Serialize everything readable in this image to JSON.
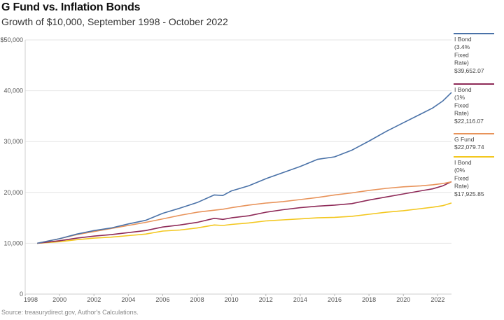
{
  "title": "G Fund vs. Inflation Bonds",
  "subtitle": "Growth of $10,000, September 1998 - October 2022",
  "source": "Source: treasurydirect.gov, Author's Calculations.",
  "chart_data": {
    "type": "line",
    "title": "G Fund vs. Inflation Bonds",
    "subtitle": "Growth of $10,000, September 1998 - October 2022",
    "xlabel": "",
    "ylabel": "",
    "xlim": [
      1998,
      2022.8
    ],
    "ylim": [
      0,
      50000
    ],
    "grid": true,
    "legend_position": "right",
    "y_ticks": [
      0,
      10000,
      20000,
      30000,
      40000,
      50000
    ],
    "y_tick_labels": [
      "0",
      "10,000",
      "20,000",
      "30,000",
      "40,000",
      "$50,000"
    ],
    "x_ticks": [
      1998,
      2000,
      2002,
      2004,
      2006,
      2008,
      2010,
      2012,
      2014,
      2016,
      2018,
      2020,
      2022
    ],
    "x_tick_labels": [
      "1998",
      "2000",
      "2002",
      "2004",
      "2006",
      "2008",
      "2010",
      "2012",
      "2014",
      "2016",
      "2018",
      "2020",
      "2022"
    ],
    "x": [
      1998.7,
      2000,
      2001,
      2002,
      2003,
      2004,
      2005,
      2006,
      2007,
      2008,
      2009,
      2009.5,
      2010,
      2011,
      2012,
      2013,
      2014,
      2015,
      2016,
      2017,
      2018,
      2019,
      2020,
      2021,
      2021.7,
      2022.3,
      2022.8
    ],
    "series": [
      {
        "name": "I Bond (3.4% Fixed Rate)",
        "legend_lines": [
          "I Bond",
          "(3.4%",
          "Fixed",
          "Rate)",
          "$39,652.07"
        ],
        "color": "#4a72a8",
        "values": [
          10000,
          10900,
          11800,
          12500,
          13000,
          13800,
          14500,
          15900,
          16900,
          18000,
          19500,
          19400,
          20300,
          21300,
          22700,
          23900,
          25100,
          26500,
          27000,
          28300,
          30100,
          32000,
          33700,
          35400,
          36600,
          38000,
          39652
        ]
      },
      {
        "name": "I Bond (1% Fixed Rate)",
        "legend_lines": [
          "I Bond",
          "(1%",
          "Fixed",
          "Rate)",
          "$22,116.07"
        ],
        "color": "#8e2a58",
        "values": [
          10000,
          10500,
          11000,
          11400,
          11700,
          12100,
          12500,
          13200,
          13600,
          14100,
          14900,
          14700,
          15000,
          15400,
          16100,
          16600,
          17000,
          17300,
          17500,
          17800,
          18500,
          19100,
          19700,
          20300,
          20700,
          21300,
          22116
        ]
      },
      {
        "name": "G Fund",
        "legend_lines": [
          "G Fund",
          "$22,079.74"
        ],
        "color": "#e8935a",
        "values": [
          10000,
          10900,
          11700,
          12300,
          12900,
          13500,
          14100,
          14800,
          15500,
          16100,
          16500,
          16700,
          17000,
          17500,
          17900,
          18200,
          18600,
          19000,
          19500,
          19900,
          20400,
          20800,
          21100,
          21300,
          21500,
          21750,
          22080
        ]
      },
      {
        "name": "I Bond (0% Fixed Rate)",
        "legend_lines": [
          "I Bond",
          "(0%",
          "Fixed",
          "Rate)",
          "$17,925.85"
        ],
        "color": "#f3c71f",
        "values": [
          10000,
          10300,
          10700,
          11000,
          11200,
          11500,
          11800,
          12400,
          12600,
          13000,
          13600,
          13500,
          13700,
          14000,
          14400,
          14600,
          14800,
          15000,
          15100,
          15300,
          15700,
          16100,
          16400,
          16800,
          17100,
          17400,
          17926
        ]
      }
    ]
  }
}
